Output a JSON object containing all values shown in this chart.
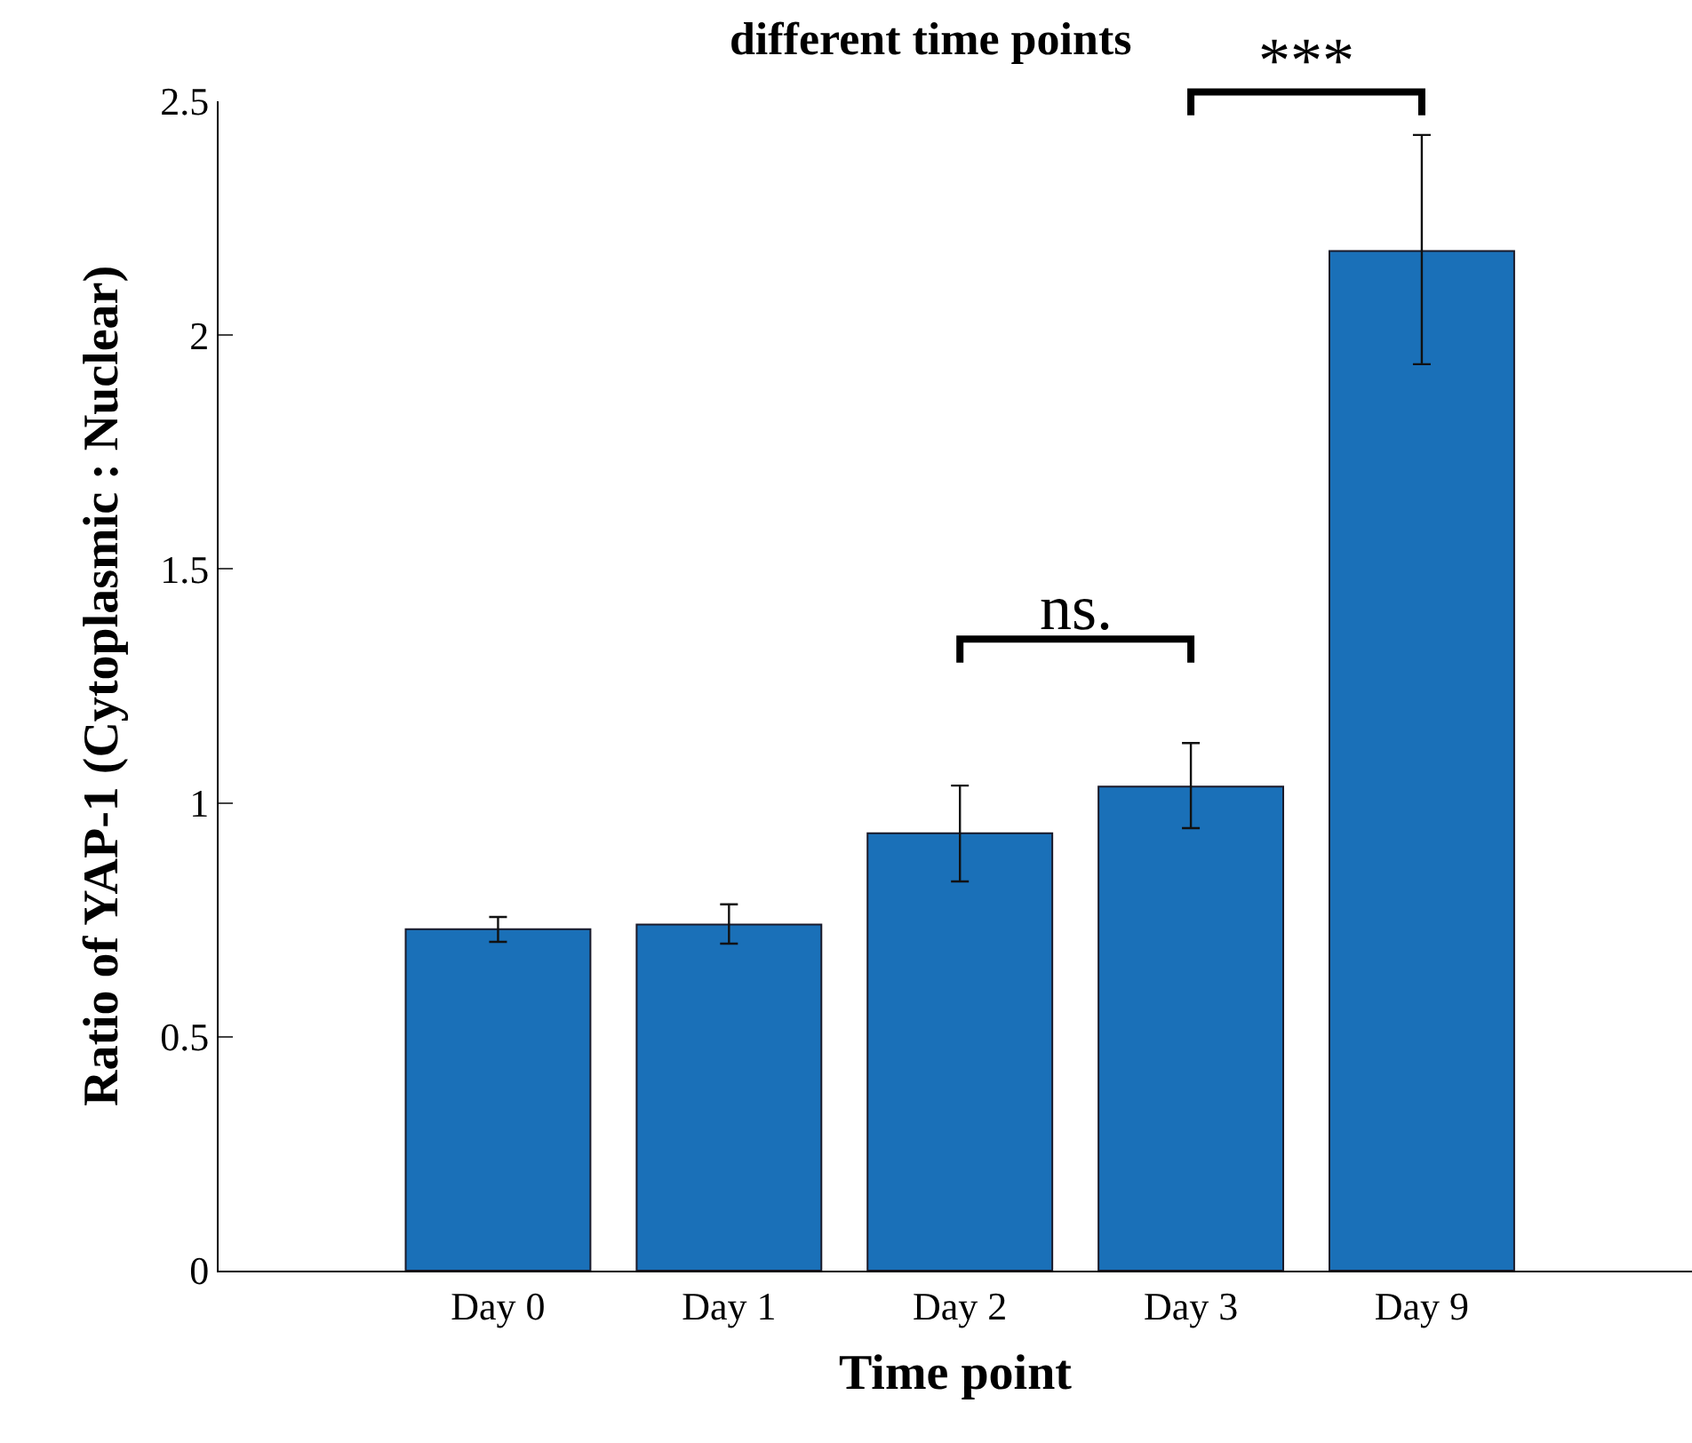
{
  "chart_data": {
    "type": "bar",
    "title": "different time points",
    "xlabel": "Time point",
    "ylabel": "Ratio of YAP-1 (Cytoplasmic : Nuclear)",
    "categories": [
      "Day 0",
      "Day 1",
      "Day 2",
      "Day 3",
      "Day 9"
    ],
    "values": [
      0.73,
      0.74,
      0.935,
      1.035,
      2.18
    ],
    "errors": [
      [
        0.703,
        0.756
      ],
      [
        0.699,
        0.783
      ],
      [
        0.832,
        1.037
      ],
      [
        0.946,
        1.128
      ],
      [
        1.938,
        2.428
      ]
    ],
    "color": "#1a70b8",
    "ylim": [
      0,
      2.5
    ],
    "yticks": [
      0,
      0.5,
      1,
      1.5,
      2,
      2.5
    ],
    "annotations": [
      "ns.",
      "***"
    ]
  }
}
